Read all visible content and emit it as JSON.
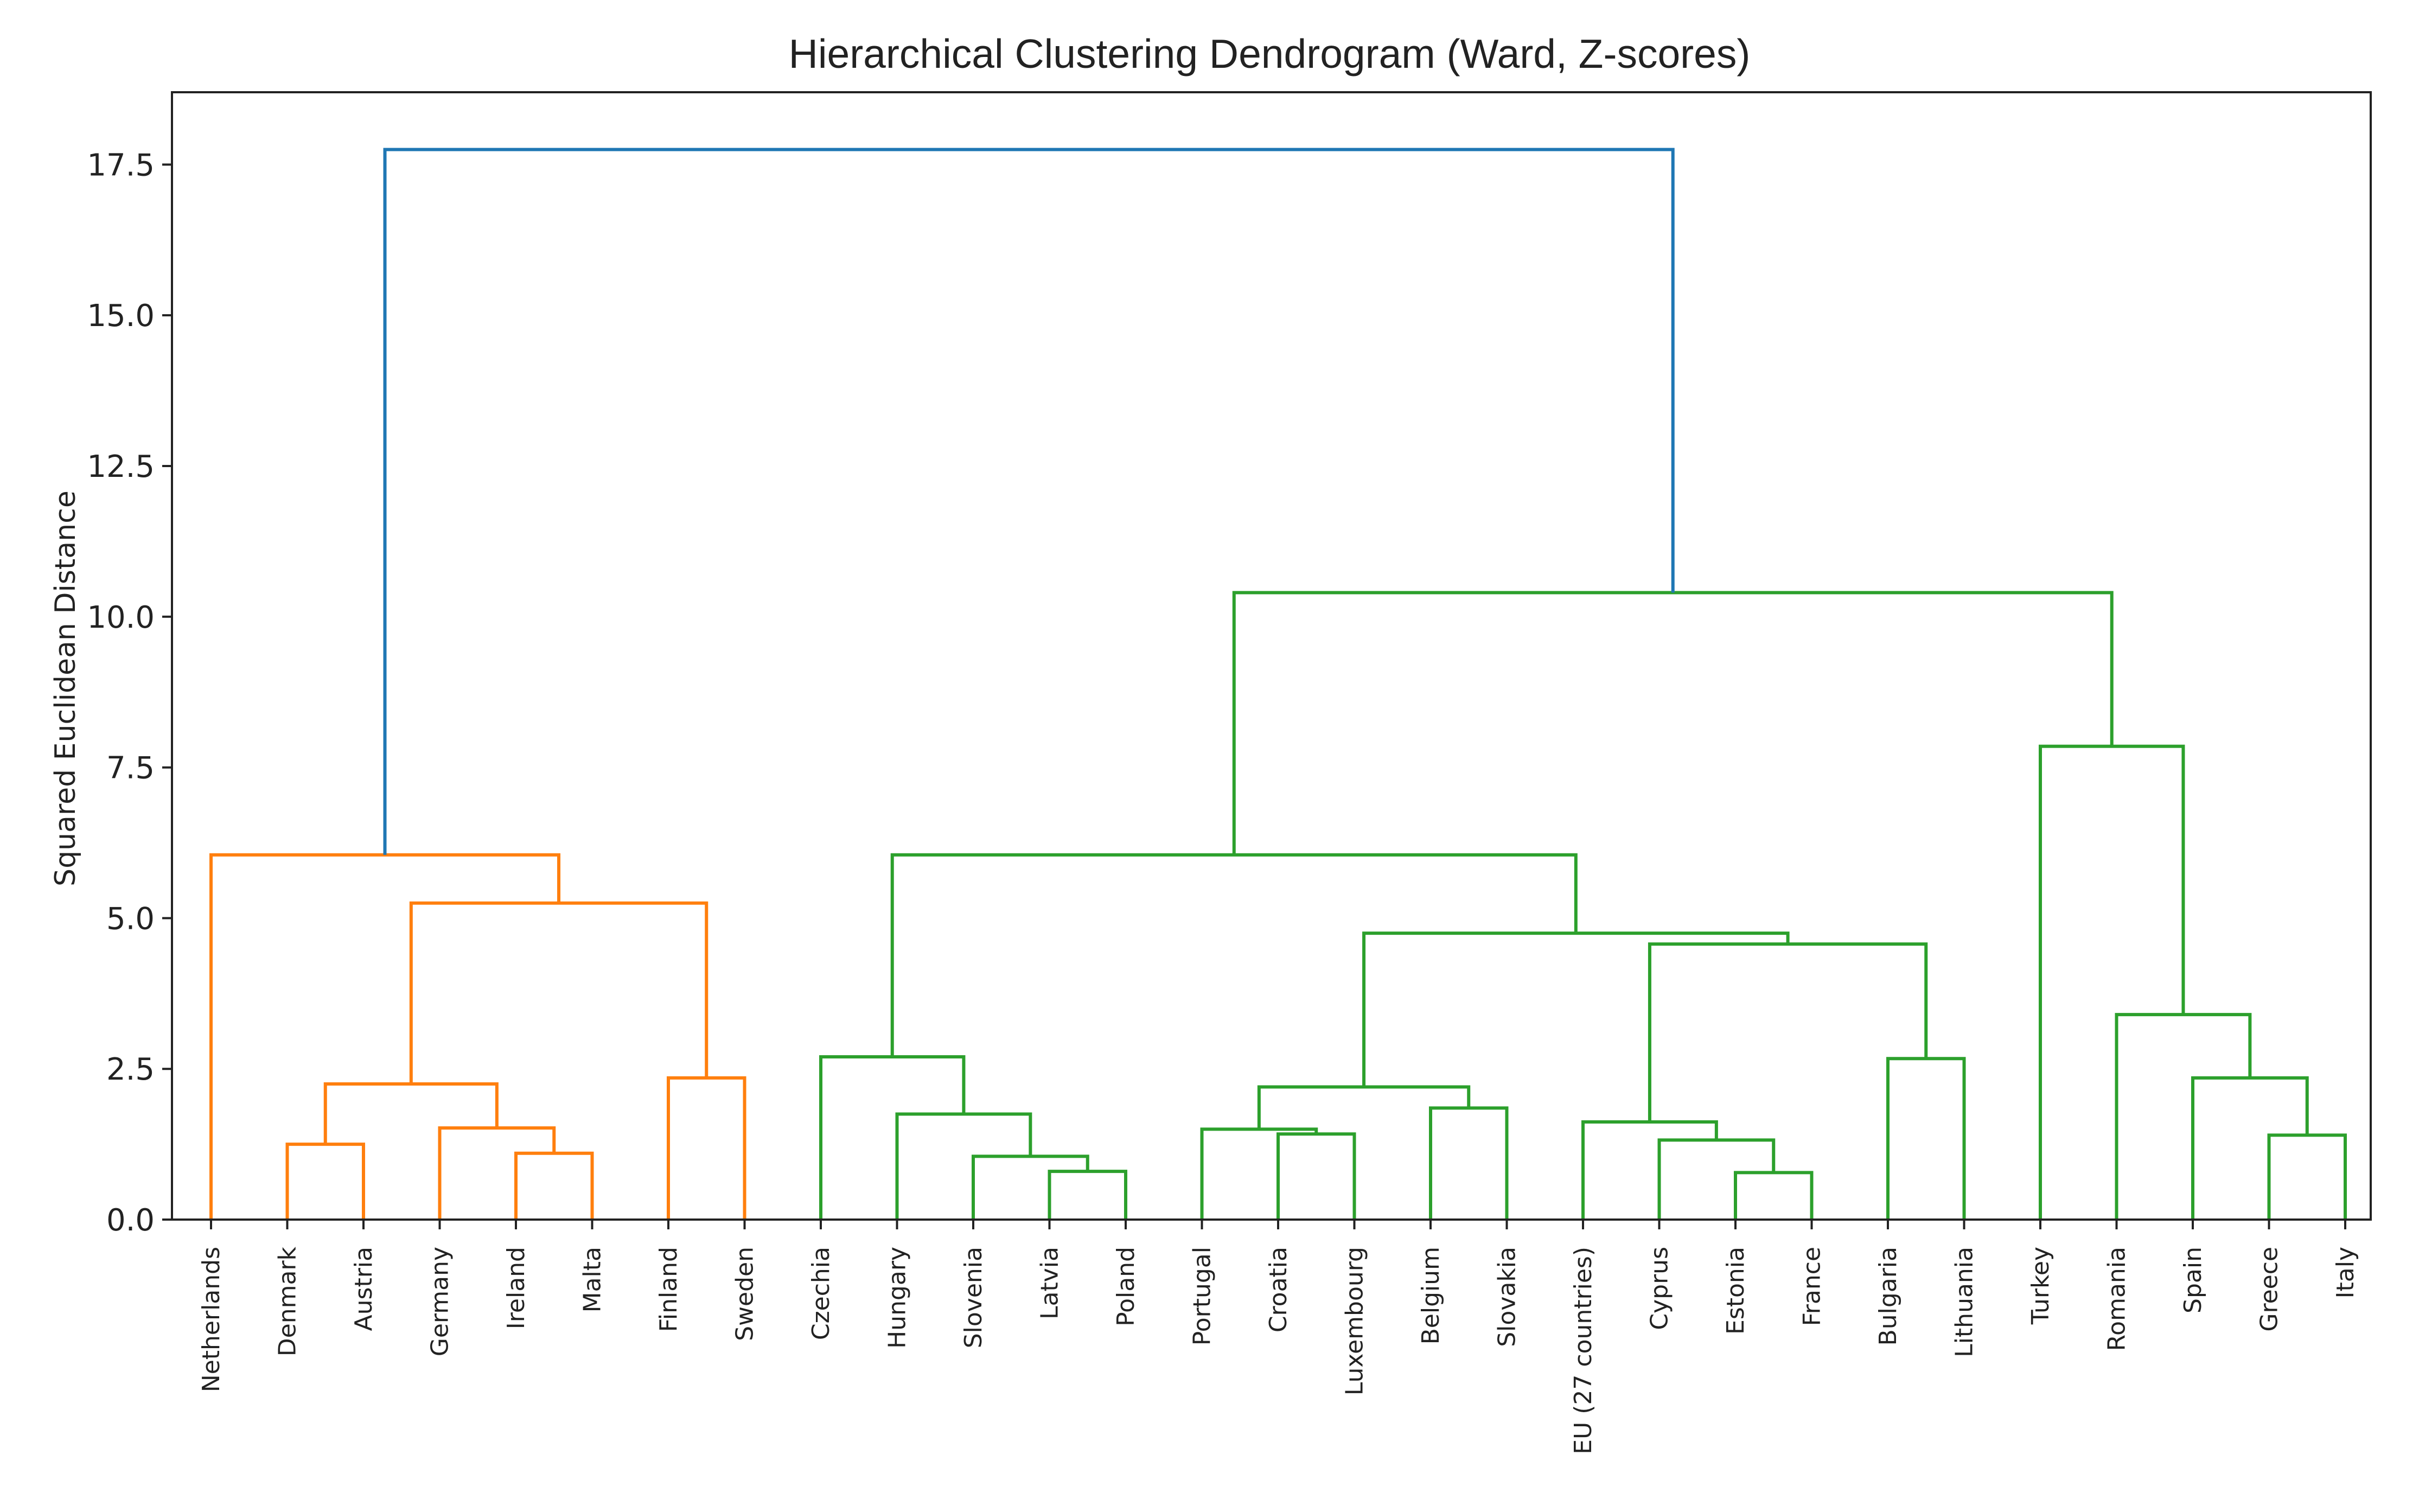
{
  "chart_data": {
    "type": "dendrogram",
    "title": "Hierarchical Clustering Dendrogram (Ward, Z-scores)",
    "xlabel": "",
    "ylabel": "Squared Euclidean Distance",
    "ylim": [
      0,
      18.7
    ],
    "yticks": [
      0.0,
      2.5,
      5.0,
      7.5,
      10.0,
      12.5,
      15.0,
      17.5
    ],
    "ytick_labels": [
      "0.0",
      "2.5",
      "5.0",
      "7.5",
      "10.0",
      "12.5",
      "15.0",
      "17.5"
    ],
    "grid": false,
    "colors": {
      "root": "#1f77b4",
      "cluster_1": "#ff7f0e",
      "cluster_2": "#2ca02c",
      "axis": "#222222"
    },
    "leaves": [
      "Netherlands",
      "Denmark",
      "Austria",
      "Germany",
      "Ireland",
      "Malta",
      "Finland",
      "Sweden",
      "Czechia",
      "Hungary",
      "Slovenia",
      "Latvia",
      "Poland",
      "Portugal",
      "Croatia",
      "Luxembourg",
      "Belgium",
      "Slovakia",
      "EU (27 countries)",
      "Cyprus",
      "Estonia",
      "France",
      "Bulgaria",
      "Lithuania",
      "Turkey",
      "Romania",
      "Spain",
      "Greece",
      "Italy"
    ],
    "merges": [
      {
        "id": "m1",
        "left": "Denmark",
        "right": "Austria",
        "height": 1.25,
        "color": "cluster_1"
      },
      {
        "id": "m2",
        "left": "Ireland",
        "right": "Malta",
        "height": 1.1,
        "color": "cluster_1"
      },
      {
        "id": "m3",
        "left": "Germany",
        "right": "m2",
        "height": 1.52,
        "color": "cluster_1"
      },
      {
        "id": "m4",
        "left": "m1",
        "right": "m3",
        "height": 2.25,
        "color": "cluster_1"
      },
      {
        "id": "m5",
        "left": "Finland",
        "right": "Sweden",
        "height": 2.35,
        "color": "cluster_1"
      },
      {
        "id": "m6",
        "left": "m4",
        "right": "m5",
        "height": 5.25,
        "color": "cluster_1"
      },
      {
        "id": "m7",
        "left": "Netherlands",
        "right": "m6",
        "height": 6.05,
        "color": "cluster_1"
      },
      {
        "id": "m8",
        "left": "Latvia",
        "right": "Poland",
        "height": 0.8,
        "color": "cluster_2"
      },
      {
        "id": "m9",
        "left": "Slovenia",
        "right": "m8",
        "height": 1.05,
        "color": "cluster_2"
      },
      {
        "id": "m10",
        "left": "Hungary",
        "right": "m9",
        "height": 1.75,
        "color": "cluster_2"
      },
      {
        "id": "m11",
        "left": "Czechia",
        "right": "m10",
        "height": 2.7,
        "color": "cluster_2"
      },
      {
        "id": "m12",
        "left": "Croatia",
        "right": "Luxembourg",
        "height": 1.42,
        "color": "cluster_2"
      },
      {
        "id": "m13",
        "left": "Portugal",
        "right": "m12",
        "height": 1.5,
        "color": "cluster_2"
      },
      {
        "id": "m14",
        "left": "Belgium",
        "right": "Slovakia",
        "height": 1.85,
        "color": "cluster_2"
      },
      {
        "id": "m15",
        "left": "m13",
        "right": "m14",
        "height": 2.2,
        "color": "cluster_2"
      },
      {
        "id": "m16",
        "left": "Estonia",
        "right": "France",
        "height": 0.78,
        "color": "cluster_2"
      },
      {
        "id": "m17",
        "left": "Cyprus",
        "right": "m16",
        "height": 1.32,
        "color": "cluster_2"
      },
      {
        "id": "m18",
        "left": "EU (27 countries)",
        "right": "m17",
        "height": 1.62,
        "color": "cluster_2"
      },
      {
        "id": "m19",
        "left": "Bulgaria",
        "right": "Lithuania",
        "height": 2.67,
        "color": "cluster_2"
      },
      {
        "id": "m20",
        "left": "m18",
        "right": "m19",
        "height": 4.57,
        "color": "cluster_2"
      },
      {
        "id": "m21",
        "left": "m15",
        "right": "m20",
        "height": 4.75,
        "color": "cluster_2"
      },
      {
        "id": "m22",
        "left": "m11",
        "right": "m21",
        "height": 6.05,
        "color": "cluster_2"
      },
      {
        "id": "m23",
        "left": "Greece",
        "right": "Italy",
        "height": 1.4,
        "color": "cluster_2"
      },
      {
        "id": "m24",
        "left": "Spain",
        "right": "m23",
        "height": 2.35,
        "color": "cluster_2"
      },
      {
        "id": "m25",
        "left": "Romania",
        "right": "m24",
        "height": 3.4,
        "color": "cluster_2"
      },
      {
        "id": "m26",
        "left": "Turkey",
        "right": "m25",
        "height": 7.85,
        "color": "cluster_2"
      },
      {
        "id": "m27",
        "left": "m22",
        "right": "m26",
        "height": 10.4,
        "color": "cluster_2"
      },
      {
        "id": "m28",
        "left": "m7",
        "right": "m27",
        "height": 17.75,
        "color": "root"
      }
    ]
  }
}
